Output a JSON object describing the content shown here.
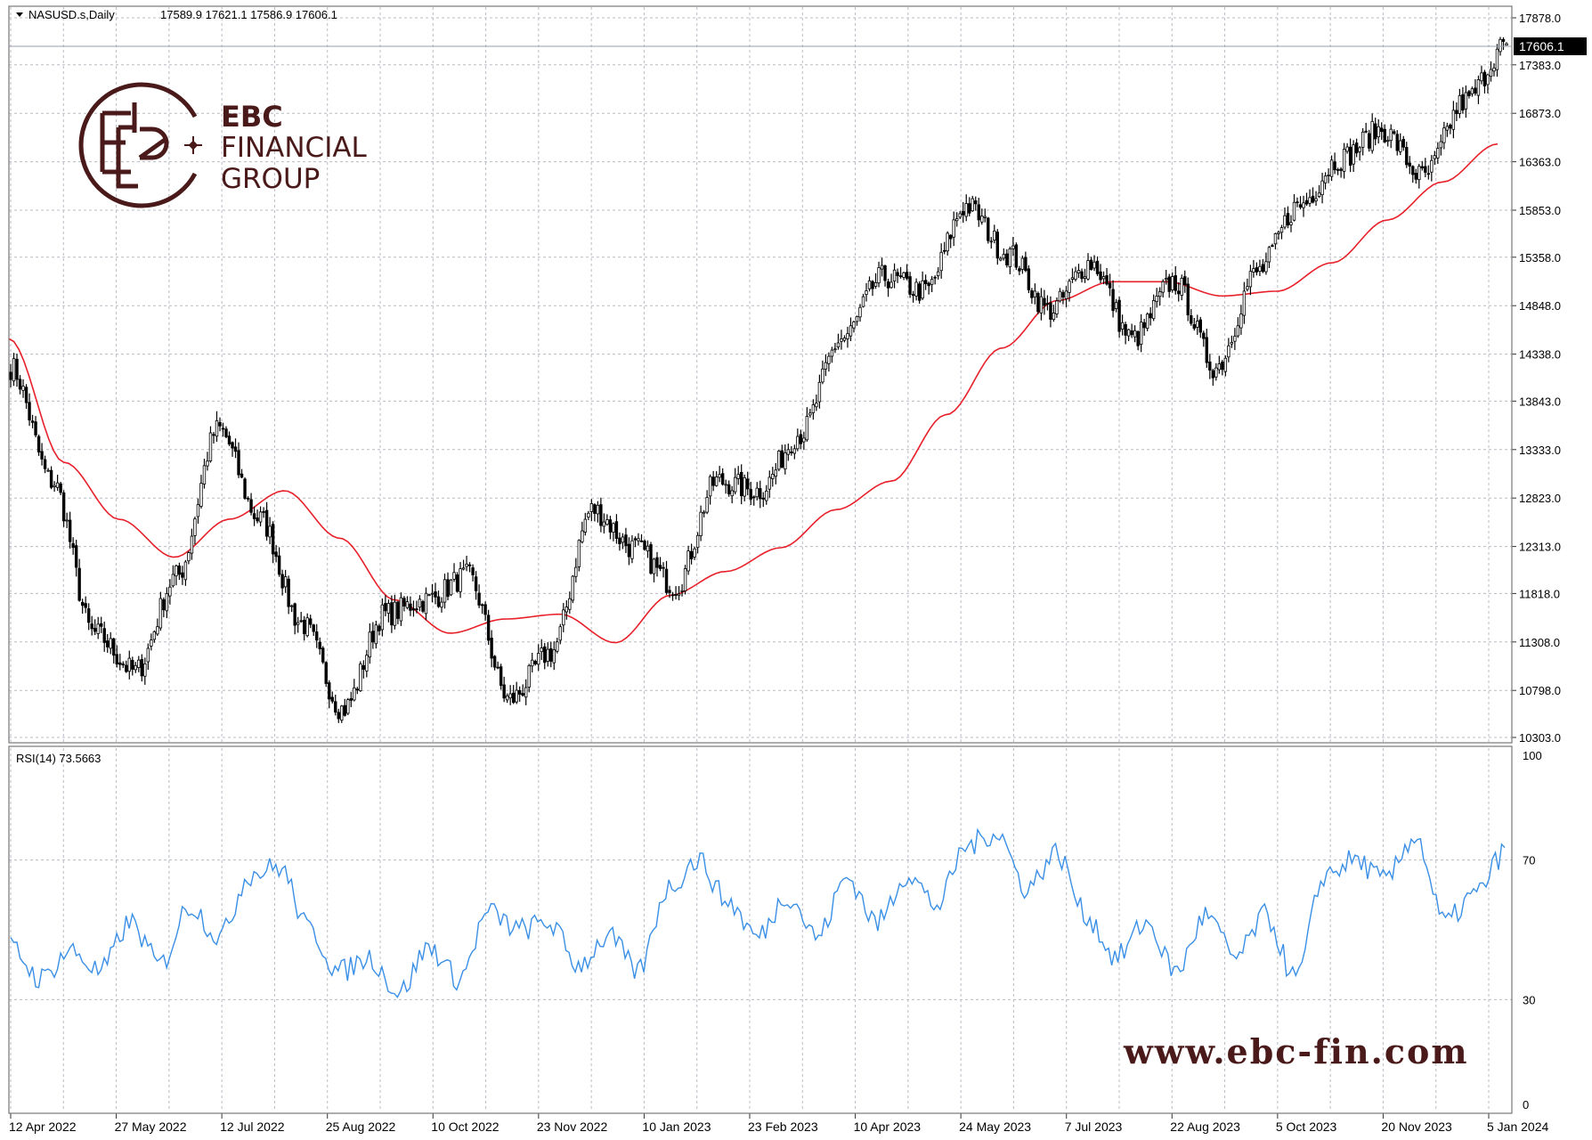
{
  "header": {
    "symbol_line": "NASUSD.s,Daily",
    "ohlc_line": "17589.9 17621.1 17586.9 17606.1"
  },
  "price_panel": {
    "current_price_label": "17606.1",
    "y_tick_labels": [
      "17878.0",
      "17383.0",
      "16873.0",
      "16363.0",
      "15853.0",
      "15358.0",
      "14848.0",
      "14338.0",
      "13843.0",
      "13333.0",
      "12823.0",
      "12313.0",
      "11818.0",
      "11308.0",
      "10798.0",
      "10303.0"
    ]
  },
  "rsi_panel": {
    "label": "RSI(14) 73.5663",
    "y_tick_labels": [
      "100",
      "70",
      "30",
      "0"
    ]
  },
  "x_tick_labels": [
    "12 Apr 2022",
    "27 May 2022",
    "12 Jul 2022",
    "25 Aug 2022",
    "10 Oct 2022",
    "23 Nov 2022",
    "10 Jan 2023",
    "23 Feb 2023",
    "10 Apr 2023",
    "24 May 2023",
    "7 Jul 2023",
    "22 Aug 2023",
    "5 Oct 2023",
    "20 Nov 2023",
    "5 Jan 2024"
  ],
  "logo": {
    "line1": "EBC",
    "line2": "FINANCIAL",
    "line3": "GROUP"
  },
  "watermark": "www.ebc-fin.com",
  "colors": {
    "candles": "#000000",
    "ma_line": "#e8202a",
    "rsi_line": "#3a8fe6",
    "grid": "#b8bcc4",
    "brand": "#4a1a1a"
  },
  "chart_data": [
    {
      "type": "candlestick",
      "symbol": "NASUSD.s",
      "timeframe": "Daily",
      "ylim": [
        10303,
        17878
      ],
      "x_categories": [
        "12 Apr 2022",
        "27 May 2022",
        "12 Jul 2022",
        "25 Aug 2022",
        "10 Oct 2022",
        "23 Nov 2022",
        "10 Jan 2023",
        "23 Feb 2023",
        "10 Apr 2023",
        "24 May 2023",
        "7 Jul 2023",
        "22 Aug 2023",
        "5 Oct 2023",
        "20 Nov 2023",
        "5 Jan 2024"
      ],
      "close_anchors": [
        14200,
        13000,
        11400,
        11000,
        12000,
        13550,
        12600,
        11500,
        10600,
        11600,
        11750,
        12000,
        10700,
        11200,
        12700,
        12300,
        11900,
        13000,
        12900,
        13500,
        14500,
        15150,
        15000,
        15900,
        15400,
        14800,
        15300,
        14500,
        15100,
        14200,
        15200,
        15900,
        16400,
        16700,
        16200,
        17000,
        17606
      ],
      "ma_anchors": [
        14500,
        13200,
        12600,
        12200,
        12600,
        12900,
        12400,
        11750,
        11400,
        11550,
        11600,
        11300,
        11800,
        12050,
        12300,
        12700,
        13000,
        13700,
        14400,
        14900,
        15100,
        15100,
        14950,
        15000,
        15300,
        15750,
        16150,
        16550
      ],
      "last": {
        "open": 17589.9,
        "high": 17621.1,
        "low": 17586.9,
        "close": 17606.1
      }
    },
    {
      "type": "line",
      "series": [
        {
          "name": "RSI(14)",
          "last": 73.5663
        }
      ],
      "ylim": [
        0,
        100
      ],
      "levels": [
        30,
        70
      ],
      "rsi_anchors": [
        45,
        36,
        44,
        38,
        52,
        40,
        57,
        48,
        66,
        68,
        50,
        38,
        42,
        32,
        45,
        36,
        55,
        50,
        52,
        40,
        48,
        38,
        62,
        70,
        58,
        48,
        60,
        48,
        65,
        52,
        66,
        57,
        74,
        78,
        62,
        72,
        54,
        42,
        52,
        38,
        54,
        42,
        54,
        36,
        66,
        70,
        64,
        77,
        52,
        60,
        72
      ]
    }
  ]
}
